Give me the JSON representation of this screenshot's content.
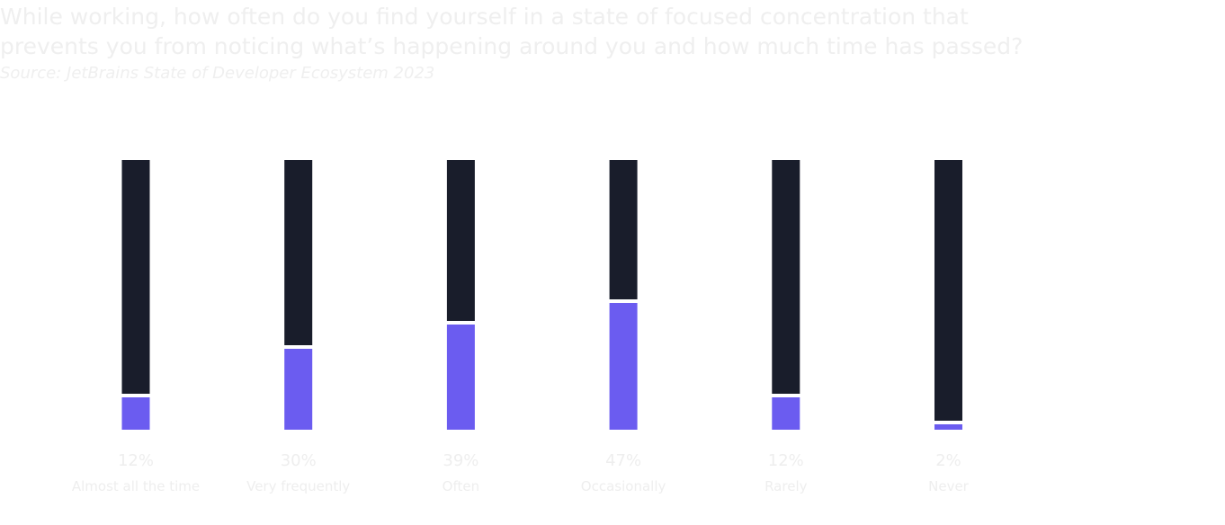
{
  "chart_data": {
    "type": "bar",
    "title_lines": [
      "While working, how often do you find yourself in a state of focused concentration that",
      "prevents you from noticing what’s happening around you and how much time has passed?"
    ],
    "source": "Source: JetBrains State of Developer Ecosystem 2023",
    "categories": [
      "Almost all the time",
      "Very frequently",
      "Often",
      "Occasionally",
      "Rarely",
      "Never"
    ],
    "values": [
      12,
      30,
      39,
      47,
      12,
      2
    ],
    "value_labels": [
      "12%",
      "30%",
      "39%",
      "47%",
      "12%",
      "2%"
    ],
    "ylim": [
      0,
      100
    ],
    "color": "#6b5cf0",
    "track_color": "#191d2b"
  }
}
